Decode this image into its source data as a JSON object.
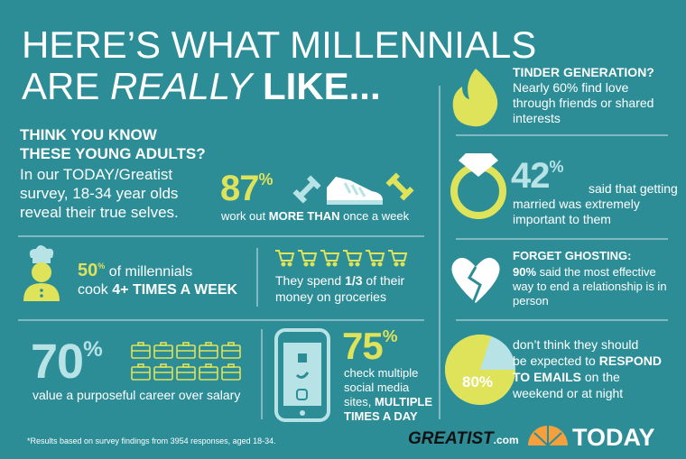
{
  "header": {
    "title_1": "HERE’S WHAT MILLENNIALS",
    "title_2a": "ARE",
    "title_2b": "REALLY",
    "title_2c": "LIKE..."
  },
  "intro": {
    "heading_1": "THINK YOU KNOW",
    "heading_2": "THESE YOUNG ADULTS?",
    "body": [
      "In our TODAY/Greatist",
      "survey, 18-34 year olds",
      "reveal their true selves."
    ]
  },
  "exercise": {
    "number": "87",
    "unit": "%",
    "caption_a": "work out",
    "caption_b": "MORE THAN",
    "caption_c": "once a week"
  },
  "cooking": {
    "number": "50",
    "unit": "%",
    "line1": "of millennials",
    "line2a": "cook",
    "line2b": "4+ TIMES A WEEK"
  },
  "groceries": {
    "line1a": "They spend",
    "line1b": "1/3",
    "line1c": "of their",
    "line2": "money on groceries"
  },
  "career": {
    "number": "70",
    "unit": "%",
    "caption": "value a purposeful career over salary"
  },
  "social": {
    "number": "75",
    "unit": "%",
    "line1": "check multiple",
    "line2": "social media",
    "line3a": "sites,",
    "line3b": "MULTIPLE",
    "line4": "TIMES A DAY"
  },
  "tinder": {
    "heading": "TINDER GENERATION?",
    "lines": [
      "Nearly 60% find love",
      "through friends or shared",
      "interests"
    ]
  },
  "marriage": {
    "number": "42",
    "unit": "%",
    "line1": "said that getting",
    "line2": "married was extremely",
    "line3": "important to them"
  },
  "ghosting": {
    "heading": "FORGET GHOSTING:",
    "line1a": "90%",
    "line1b": "said the most effective",
    "line2": "way to end a relationship is in",
    "line3": "person"
  },
  "emails": {
    "pie": {
      "value": 80,
      "label": "80%"
    },
    "line1": "don’t think they should",
    "line2a": "be expected to",
    "line2b": "RESPOND",
    "line3a": "TO EMAILS",
    "line3b": "on the",
    "line4": "weekend or at night"
  },
  "footer": {
    "note": "*Results based on survey findings from 3954 responses, aged 18-34.",
    "greatist_a": "GREATIST",
    "greatist_b": ".com",
    "today": "TODAY"
  }
}
